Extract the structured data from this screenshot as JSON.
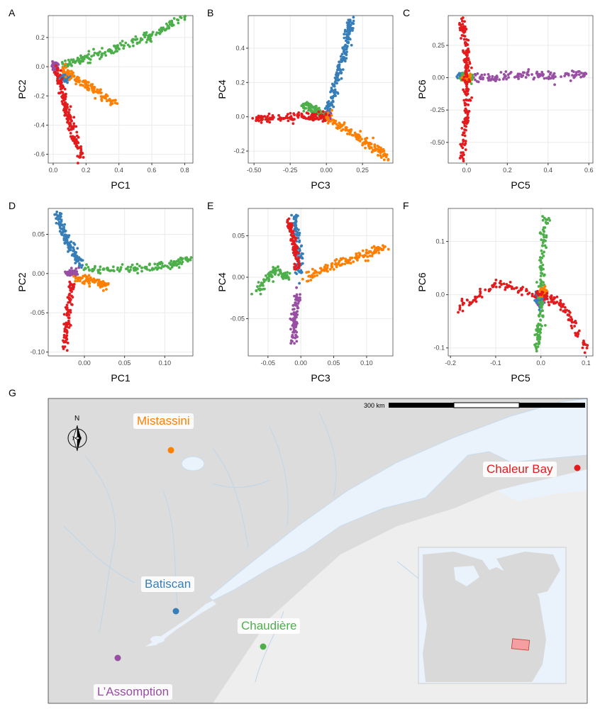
{
  "panels": [
    {
      "label": "A",
      "xlabel": "PC1",
      "ylabel": "PC2",
      "xlim": [
        -0.03,
        0.85
      ],
      "ylim": [
        -0.66,
        0.35
      ],
      "xticks": [
        0.0,
        0.2,
        0.4,
        0.6,
        0.8
      ],
      "xtick_labels": [
        "0.0",
        "0.2",
        "0.4",
        "0.6",
        "0.8"
      ],
      "yticks": [
        -0.6,
        -0.4,
        -0.2,
        0.0,
        0.2
      ],
      "ytick_labels": [
        "-0.6",
        "-0.4",
        "-0.2",
        "0.0",
        "0.2"
      ]
    },
    {
      "label": "B",
      "xlabel": "PC3",
      "ylabel": "PC4",
      "xlim": [
        -0.54,
        0.46
      ],
      "ylim": [
        -0.27,
        0.59
      ],
      "xticks": [
        -0.5,
        -0.25,
        0.0,
        0.25
      ],
      "xtick_labels": [
        "-0.50",
        "-0.25",
        "0.00",
        "0.25"
      ],
      "yticks": [
        -0.2,
        0.0,
        0.2,
        0.4
      ],
      "ytick_labels": [
        "-0.2",
        "0.0",
        "0.2",
        "0.4"
      ]
    },
    {
      "label": "C",
      "xlabel": "PC5",
      "ylabel": "PC6",
      "xlim": [
        -0.09,
        0.62
      ],
      "ylim": [
        -0.66,
        0.48
      ],
      "xticks": [
        0.0,
        0.2,
        0.4,
        0.6
      ],
      "xtick_labels": [
        "0.0",
        "0.2",
        "0.4",
        "0.6"
      ],
      "yticks": [
        -0.5,
        -0.25,
        0.0,
        0.25
      ],
      "ytick_labels": [
        "-0.50",
        "-0.25",
        "0.00",
        "0.25"
      ]
    },
    {
      "label": "D",
      "xlabel": "PC1",
      "ylabel": "PC2",
      "xlim": [
        -0.045,
        0.135
      ],
      "ylim": [
        -0.105,
        0.083
      ],
      "xticks": [
        0.0,
        0.05,
        0.1
      ],
      "xtick_labels": [
        "0.00",
        "0.05",
        "0.10"
      ],
      "yticks": [
        -0.1,
        -0.05,
        0.0,
        0.05
      ],
      "ytick_labels": [
        "-0.10",
        "-0.05",
        "0.00",
        "0.05"
      ]
    },
    {
      "label": "E",
      "xlabel": "PC3",
      "ylabel": "PC4",
      "xlim": [
        -0.08,
        0.14
      ],
      "ylim": [
        -0.095,
        0.083
      ],
      "xticks": [
        -0.05,
        0.0,
        0.05,
        0.1
      ],
      "xtick_labels": [
        "-0.05",
        "0.00",
        "0.05",
        "0.10"
      ],
      "yticks": [
        -0.05,
        0.0,
        0.05
      ],
      "ytick_labels": [
        "-0.05",
        "0.00",
        "0.05"
      ]
    },
    {
      "label": "F",
      "xlabel": "PC5",
      "ylabel": "PC6",
      "xlim": [
        -0.205,
        0.115
      ],
      "ylim": [
        -0.115,
        0.162
      ],
      "xticks": [
        -0.2,
        -0.1,
        0.0,
        0.1
      ],
      "xtick_labels": [
        "-0.2",
        "-0.1",
        "0.0",
        "0.1"
      ],
      "yticks": [
        -0.1,
        0.0,
        0.1
      ],
      "ytick_labels": [
        "-0.1",
        "0.0",
        "0.1"
      ]
    }
  ],
  "chart_data": [
    {
      "type": "scatter",
      "panel": "A",
      "xlabel": "PC1",
      "ylabel": "PC2",
      "series": [
        {
          "color": "#4DAF4A",
          "points": [
            [
              0.05,
              0.01
            ],
            [
              0.2,
              0.06
            ],
            [
              0.4,
              0.13
            ],
            [
              0.6,
              0.21
            ],
            [
              0.8,
              0.34
            ]
          ]
        },
        {
          "color": "#FF7F00",
          "points": [
            [
              0.05,
              -0.02
            ],
            [
              0.15,
              -0.09
            ],
            [
              0.25,
              -0.16
            ],
            [
              0.39,
              -0.27
            ]
          ]
        },
        {
          "color": "#E41A1C",
          "points": [
            [
              0.02,
              0.0
            ],
            [
              0.05,
              -0.15
            ],
            [
              0.08,
              -0.3
            ],
            [
              0.12,
              -0.45
            ],
            [
              0.17,
              -0.62
            ]
          ]
        },
        {
          "color": "#377EB8",
          "points": [
            [
              0.05,
              -0.06
            ],
            [
              0.08,
              -0.09
            ]
          ]
        },
        {
          "color": "#984EA3",
          "points": [
            [
              0.0,
              0.0
            ],
            [
              0.02,
              -0.01
            ]
          ]
        }
      ]
    },
    {
      "type": "scatter",
      "panel": "B",
      "xlabel": "PC3",
      "ylabel": "PC4",
      "series": [
        {
          "color": "#377EB8",
          "points": [
            [
              0.0,
              0.0
            ],
            [
              0.05,
              0.15
            ],
            [
              0.1,
              0.3
            ],
            [
              0.15,
              0.45
            ],
            [
              0.17,
              0.56
            ]
          ]
        },
        {
          "color": "#FF7F00",
          "points": [
            [
              0.0,
              0.0
            ],
            [
              0.15,
              -0.08
            ],
            [
              0.3,
              -0.16
            ],
            [
              0.43,
              -0.24
            ]
          ]
        },
        {
          "color": "#E41A1C",
          "points": [
            [
              -0.5,
              -0.01
            ],
            [
              -0.3,
              0.0
            ],
            [
              -0.1,
              0.0
            ],
            [
              0.0,
              0.0
            ]
          ]
        },
        {
          "color": "#4DAF4A",
          "points": [
            [
              -0.17,
              0.07
            ],
            [
              -0.08,
              0.04
            ],
            [
              0.0,
              0.0
            ]
          ]
        },
        {
          "color": "#984EA3",
          "points": [
            [
              0.0,
              0.0
            ],
            [
              0.02,
              0.01
            ]
          ]
        }
      ]
    },
    {
      "type": "scatter",
      "panel": "C",
      "xlabel": "PC5",
      "ylabel": "PC6",
      "series": [
        {
          "color": "#E41A1C",
          "points": [
            [
              -0.02,
              0.44
            ],
            [
              0.0,
              0.2
            ],
            [
              0.0,
              0.0
            ],
            [
              0.0,
              -0.3
            ],
            [
              -0.02,
              -0.62
            ]
          ]
        },
        {
          "color": "#984EA3",
          "points": [
            [
              0.0,
              0.0
            ],
            [
              0.2,
              0.01
            ],
            [
              0.4,
              0.02
            ],
            [
              0.59,
              0.03
            ]
          ]
        },
        {
          "color": "#377EB8",
          "points": [
            [
              -0.04,
              0.0
            ],
            [
              0.0,
              0.0
            ]
          ]
        },
        {
          "color": "#4DAF4A",
          "points": [
            [
              -0.02,
              0.0
            ],
            [
              0.02,
              0.0
            ]
          ]
        },
        {
          "color": "#FF7F00",
          "points": [
            [
              0.0,
              0.0
            ]
          ]
        }
      ]
    },
    {
      "type": "scatter",
      "panel": "D",
      "xlabel": "PC1",
      "ylabel": "PC2",
      "series": [
        {
          "color": "#377EB8",
          "points": [
            [
              -0.035,
              0.08
            ],
            [
              -0.025,
              0.05
            ],
            [
              -0.015,
              0.03
            ],
            [
              -0.005,
              0.01
            ]
          ]
        },
        {
          "color": "#E41A1C",
          "points": [
            [
              -0.015,
              -0.01
            ],
            [
              -0.02,
              -0.05
            ],
            [
              -0.025,
              -0.1
            ]
          ]
        },
        {
          "color": "#4DAF4A",
          "points": [
            [
              0.0,
              0.005
            ],
            [
              0.05,
              0.005
            ],
            [
              0.1,
              0.01
            ],
            [
              0.13,
              0.018
            ]
          ]
        },
        {
          "color": "#FF7F00",
          "points": [
            [
              -0.01,
              -0.005
            ],
            [
              0.01,
              -0.01
            ],
            [
              0.03,
              -0.015
            ]
          ]
        },
        {
          "color": "#984EA3",
          "points": [
            [
              -0.02,
              0.0
            ],
            [
              -0.01,
              0.0
            ]
          ]
        }
      ]
    },
    {
      "type": "scatter",
      "panel": "E",
      "xlabel": "PC3",
      "ylabel": "PC4",
      "series": [
        {
          "color": "#E41A1C",
          "points": [
            [
              -0.02,
              0.07
            ],
            [
              -0.01,
              0.04
            ],
            [
              -0.005,
              0.01
            ]
          ]
        },
        {
          "color": "#377EB8",
          "points": [
            [
              -0.01,
              0.075
            ],
            [
              -0.005,
              0.04
            ],
            [
              0.0,
              0.0
            ]
          ]
        },
        {
          "color": "#FF7F00",
          "points": [
            [
              0.01,
              0.0
            ],
            [
              0.05,
              0.015
            ],
            [
              0.09,
              0.025
            ],
            [
              0.13,
              0.037
            ]
          ]
        },
        {
          "color": "#4DAF4A",
          "points": [
            [
              -0.07,
              -0.02
            ],
            [
              -0.04,
              0.01
            ],
            [
              -0.02,
              0.0
            ]
          ]
        },
        {
          "color": "#984EA3",
          "points": [
            [
              -0.005,
              -0.02
            ],
            [
              -0.01,
              -0.05
            ],
            [
              -0.01,
              -0.08
            ]
          ]
        }
      ]
    },
    {
      "type": "scatter",
      "panel": "F",
      "xlabel": "PC5",
      "ylabel": "PC6",
      "series": [
        {
          "color": "#E41A1C",
          "points": [
            [
              -0.19,
              -0.03
            ],
            [
              -0.1,
              0.02
            ],
            [
              0.0,
              0.0
            ],
            [
              0.05,
              -0.02
            ],
            [
              0.1,
              -0.1
            ]
          ]
        },
        {
          "color": "#4DAF4A",
          "points": [
            [
              0.01,
              0.15
            ],
            [
              0.0,
              0.05
            ],
            [
              0.0,
              -0.04
            ],
            [
              -0.01,
              -0.1
            ]
          ]
        },
        {
          "color": "#FF7F00",
          "points": [
            [
              0.0,
              0.0
            ],
            [
              0.01,
              0.01
            ]
          ]
        },
        {
          "color": "#377EB8",
          "points": [
            [
              -0.01,
              0.0
            ],
            [
              0.0,
              -0.02
            ]
          ]
        },
        {
          "color": "#984EA3",
          "points": [
            [
              0.0,
              -0.01
            ]
          ]
        }
      ]
    }
  ],
  "map": {
    "panel_label": "G",
    "scale_label": "300 km",
    "north_label": "N",
    "sites": [
      {
        "name": "Mistassini",
        "color": "#FF7F00"
      },
      {
        "name": "Chaleur Bay",
        "color": "#E41A1C"
      },
      {
        "name": "Batiscan",
        "color": "#377EB8"
      },
      {
        "name": "Chaudière",
        "color": "#4DAF4A"
      },
      {
        "name": "L’Assomption",
        "color": "#984EA3"
      }
    ],
    "colors": {
      "water": "#eaf3fb",
      "land": "#dcdcdc",
      "land_light": "#eeeeee",
      "rivers": "#bed6ea"
    }
  }
}
